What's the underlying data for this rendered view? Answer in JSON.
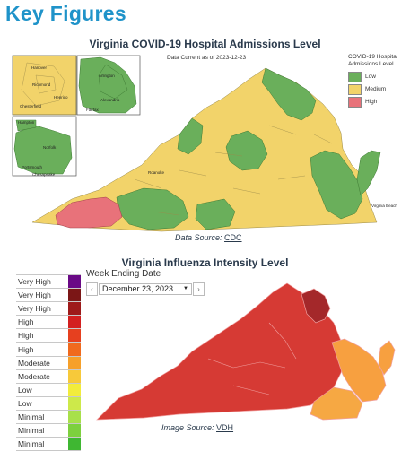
{
  "page_heading": "Key Figures",
  "covid_map": {
    "title": "Virginia COVID-19 Hospital Admissions Level",
    "data_current": "Data Current as of 2023-12-23",
    "legend_title": "COVID-19 Hospital Admissions Level",
    "legend": [
      {
        "label": "Low",
        "color": "#6aaf5b"
      },
      {
        "label": "Medium",
        "color": "#f2d36a"
      },
      {
        "label": "High",
        "color": "#e8727a"
      }
    ],
    "inset_labels": {
      "hanover": "Hanover",
      "richmond": "Richmond",
      "henrico": "Henrico",
      "chesterfield": "Chesterfield",
      "arlington": "Arlington",
      "alexandria": "Alexandria",
      "fairfax": "Fairfax",
      "hampton": "Hampton",
      "norfolk": "Norfolk",
      "portsmouth": "Portsmouth",
      "chesapeake": "Chesapeake"
    },
    "place_labels": {
      "roanoke": "Roanoke",
      "virginia_beach": "Virginia Beach"
    },
    "source_prefix": "Data Source: ",
    "source_link": "CDC"
  },
  "flu_map": {
    "title": "Virginia Influenza Intensity Level",
    "week_label": "Week Ending Date",
    "date_value": "December 23, 2023",
    "prev_icon": "chevron-left-icon",
    "next_icon": "chevron-right-icon",
    "intensity_levels": [
      {
        "label": "Very High",
        "color": "#6a0a86"
      },
      {
        "label": "Very High",
        "color": "#7b1616"
      },
      {
        "label": "Very High",
        "color": "#9e1a1a"
      },
      {
        "label": "High",
        "color": "#d32020"
      },
      {
        "label": "High",
        "color": "#e6401f"
      },
      {
        "label": "High",
        "color": "#f06a1e"
      },
      {
        "label": "Moderate",
        "color": "#f6a02a"
      },
      {
        "label": "Moderate",
        "color": "#f7c93a"
      },
      {
        "label": "Low",
        "color": "#f2ec3c"
      },
      {
        "label": "Low",
        "color": "#cde94a"
      },
      {
        "label": "Minimal",
        "color": "#a8e04a"
      },
      {
        "label": "Minimal",
        "color": "#7dd03e"
      },
      {
        "label": "Minimal",
        "color": "#3fb732"
      }
    ],
    "region_colors": {
      "main": "#d63a34",
      "northern": "#a4282a",
      "eastern": "#f7a040",
      "southeast": "#f6a843"
    },
    "source_prefix": "Image Source: ",
    "source_link": "VDH"
  }
}
